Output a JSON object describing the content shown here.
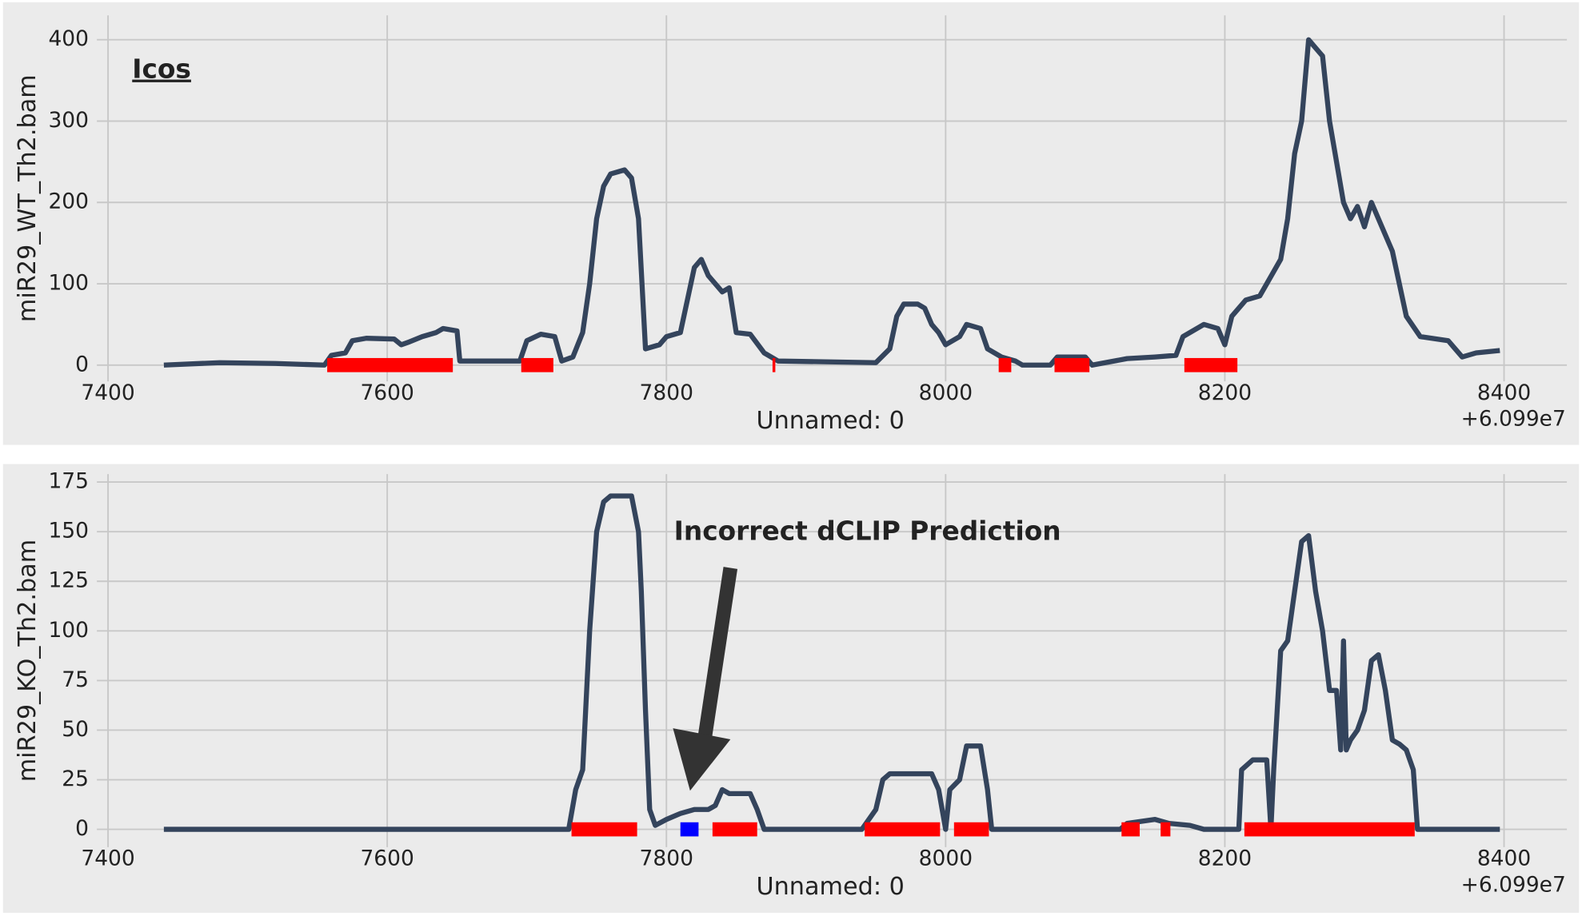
{
  "chart_data": [
    {
      "type": "line",
      "ylabel": "miR29_WT_Th2.bam",
      "xlabel": "Unnamed: 0",
      "offset_text": "+6.099e7",
      "annotation": "Icos",
      "xlim": [
        7392,
        8445
      ],
      "ylim": [
        -20,
        430
      ],
      "xticks": [
        7400,
        7600,
        7800,
        8000,
        8200,
        8400
      ],
      "yticks": [
        0,
        100,
        200,
        300,
        400
      ],
      "grid": true,
      "series": [
        {
          "color": "#34445c",
          "x": [
            7440,
            7480,
            7520,
            7555,
            7560,
            7570,
            7575,
            7585,
            7605,
            7610,
            7615,
            7625,
            7635,
            7640,
            7650,
            7652,
            7695,
            7700,
            7710,
            7720,
            7725,
            7733,
            7740,
            7745,
            7750,
            7755,
            7760,
            7770,
            7775,
            7780,
            7785,
            7795,
            7800,
            7810,
            7815,
            7820,
            7825,
            7830,
            7840,
            7845,
            7850,
            7860,
            7870,
            7875,
            7880,
            7950,
            7960,
            7965,
            7970,
            7980,
            7985,
            7990,
            7995,
            8000,
            8010,
            8015,
            8025,
            8030,
            8040,
            8050,
            8055,
            8075,
            8080,
            8100,
            8105,
            8130,
            8150,
            8165,
            8170,
            8185,
            8195,
            8200,
            8205,
            8215,
            8225,
            8230,
            8240,
            8245,
            8250,
            8255,
            8260,
            8265,
            8270,
            8275,
            8280,
            8285,
            8290,
            8295,
            8300,
            8305,
            8310,
            8315,
            8320,
            8330,
            8340,
            8360,
            8365,
            8370,
            8380,
            8397
          ],
          "values": [
            0,
            3,
            2,
            0,
            12,
            15,
            30,
            33,
            32,
            25,
            28,
            35,
            40,
            45,
            42,
            5,
            5,
            30,
            38,
            35,
            5,
            10,
            40,
            100,
            180,
            220,
            235,
            240,
            230,
            180,
            20,
            25,
            35,
            40,
            80,
            120,
            130,
            110,
            90,
            95,
            40,
            38,
            15,
            10,
            5,
            3,
            20,
            60,
            75,
            75,
            70,
            50,
            40,
            25,
            35,
            50,
            45,
            20,
            10,
            5,
            0,
            0,
            10,
            10,
            0,
            8,
            10,
            12,
            35,
            50,
            45,
            25,
            60,
            80,
            85,
            100,
            130,
            180,
            260,
            300,
            400,
            390,
            380,
            300,
            250,
            200,
            180,
            195,
            170,
            200,
            180,
            160,
            140,
            60,
            35,
            30,
            20,
            10,
            15,
            18
          ]
        }
      ],
      "regions": [
        {
          "color": "#ff0000",
          "spans": [
            [
              7557,
              7647
            ],
            [
              7696,
              7719
            ],
            [
              7876,
              7878
            ],
            [
              8038,
              8047
            ],
            [
              8078,
              8103
            ],
            [
              8171,
              8209
            ]
          ]
        }
      ]
    },
    {
      "type": "line",
      "ylabel": "miR29_KO_Th2.bam",
      "xlabel": "Unnamed: 0",
      "offset_text": "+6.099e7",
      "annotation": "Incorrect dCLIP Prediction",
      "xlim": [
        7392,
        8445
      ],
      "ylim": [
        -9,
        179
      ],
      "xticks": [
        7400,
        7600,
        7800,
        8000,
        8200,
        8400
      ],
      "yticks": [
        0,
        25,
        50,
        75,
        100,
        125,
        150,
        175
      ],
      "grid": true,
      "series": [
        {
          "color": "#34445c",
          "x": [
            7440,
            7730,
            7735,
            7740,
            7745,
            7750,
            7755,
            7760,
            7775,
            7780,
            7782,
            7785,
            7788,
            7792,
            7800,
            7810,
            7820,
            7830,
            7835,
            7840,
            7845,
            7860,
            7865,
            7870,
            7940,
            7945,
            7950,
            7955,
            7960,
            7990,
            7995,
            8000,
            8003,
            8010,
            8015,
            8025,
            8030,
            8033,
            8125,
            8130,
            8150,
            8160,
            8175,
            8185,
            8210,
            8212,
            8220,
            8230,
            8233,
            8235,
            8240,
            8245,
            8250,
            8255,
            8260,
            8265,
            8270,
            8275,
            8280,
            8283,
            8285,
            8287,
            8290,
            8295,
            8300,
            8305,
            8310,
            8315,
            8320,
            8325,
            8330,
            8335,
            8338,
            8397
          ],
          "values": [
            0,
            0,
            20,
            30,
            100,
            150,
            165,
            168,
            168,
            150,
            120,
            60,
            10,
            2,
            5,
            8,
            10,
            10,
            12,
            20,
            18,
            18,
            10,
            0,
            0,
            5,
            10,
            25,
            28,
            28,
            20,
            0,
            20,
            25,
            42,
            42,
            20,
            0,
            0,
            3,
            5,
            3,
            2,
            0,
            0,
            30,
            35,
            35,
            0,
            30,
            90,
            95,
            120,
            145,
            148,
            120,
            100,
            70,
            70,
            40,
            95,
            40,
            45,
            50,
            60,
            85,
            88,
            70,
            45,
            43,
            40,
            30,
            0,
            0
          ]
        }
      ],
      "regions": [
        {
          "color": "#ff0000",
          "spans": [
            [
              7732,
              7779
            ],
            [
              7833,
              7865
            ],
            [
              7942,
              7996
            ],
            [
              8006,
              8031
            ],
            [
              8126,
              8139
            ],
            [
              8154,
              8161
            ],
            [
              8214,
              8336
            ]
          ]
        },
        {
          "color": "#0000ff",
          "spans": [
            [
              7810,
              7823
            ]
          ]
        }
      ]
    }
  ]
}
